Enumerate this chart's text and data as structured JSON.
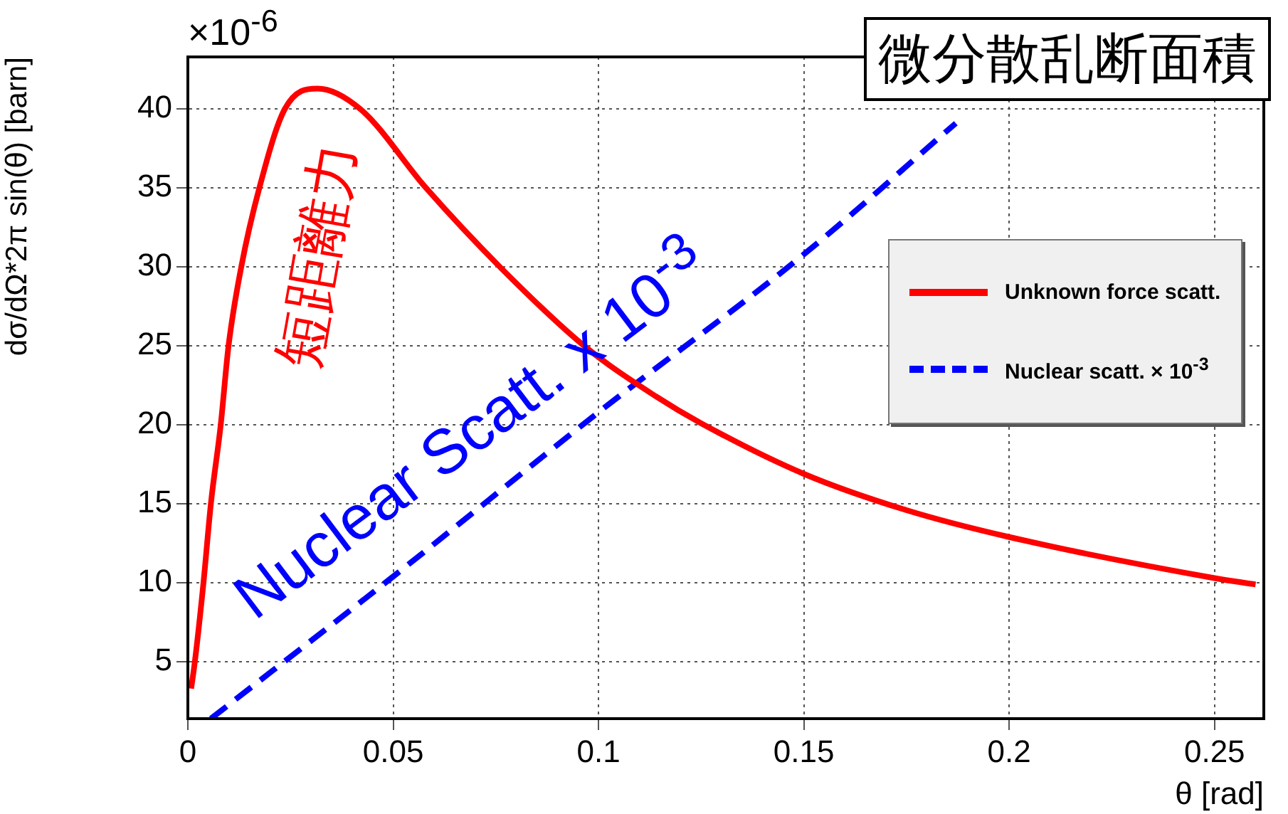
{
  "chart_data": {
    "type": "line",
    "title": "微分散乱断面積",
    "xlabel": "θ [rad]",
    "ylabel": "dσ/dΩ*2π sin(θ) [barn]",
    "xlim": [
      0,
      0.262
    ],
    "xticks": [
      0,
      0.05,
      0.1,
      0.15,
      0.2,
      0.25
    ],
    "ylim": [
      1.4,
      43.3
    ],
    "yticks": [
      5,
      10,
      15,
      20,
      25,
      30,
      35,
      40
    ],
    "grid": true,
    "legend": "right",
    "marker": "none",
    "series": [
      {
        "name": "Unknown force scatt.",
        "color": "#ff0000",
        "line_style": "solid",
        "x": [
          0.0008,
          0.0017,
          0.0038,
          0.0056,
          0.008,
          0.0099,
          0.013,
          0.0174,
          0.0236,
          0.0316,
          0.042,
          0.058,
          0.076,
          0.0965,
          0.114,
          0.125,
          0.15,
          0.175,
          0.2,
          0.25,
          0.26
        ],
        "values": [
          3.3,
          5,
          10,
          15,
          20,
          25,
          30,
          35,
          40,
          41.3,
          40,
          35,
          30,
          25,
          21.8,
          20.1,
          16.9,
          14.6,
          12.9,
          10.3,
          9.9
        ]
      },
      {
        "name": "Nuclear scatt. × 10$^{-3}$",
        "color": "#0000ff",
        "line_style": "dashed",
        "x": [
          0.0056,
          0.05,
          0.1,
          0.15,
          0.187
        ],
        "values": [
          1.4,
          10.4,
          20.8,
          30.8,
          39.1
        ]
      }
    ],
    "annotations": [
      "×10$^{-6}$",
      "短距離力",
      "Nuclear Scatt. x 10$^{-3}$"
    ]
  }
}
